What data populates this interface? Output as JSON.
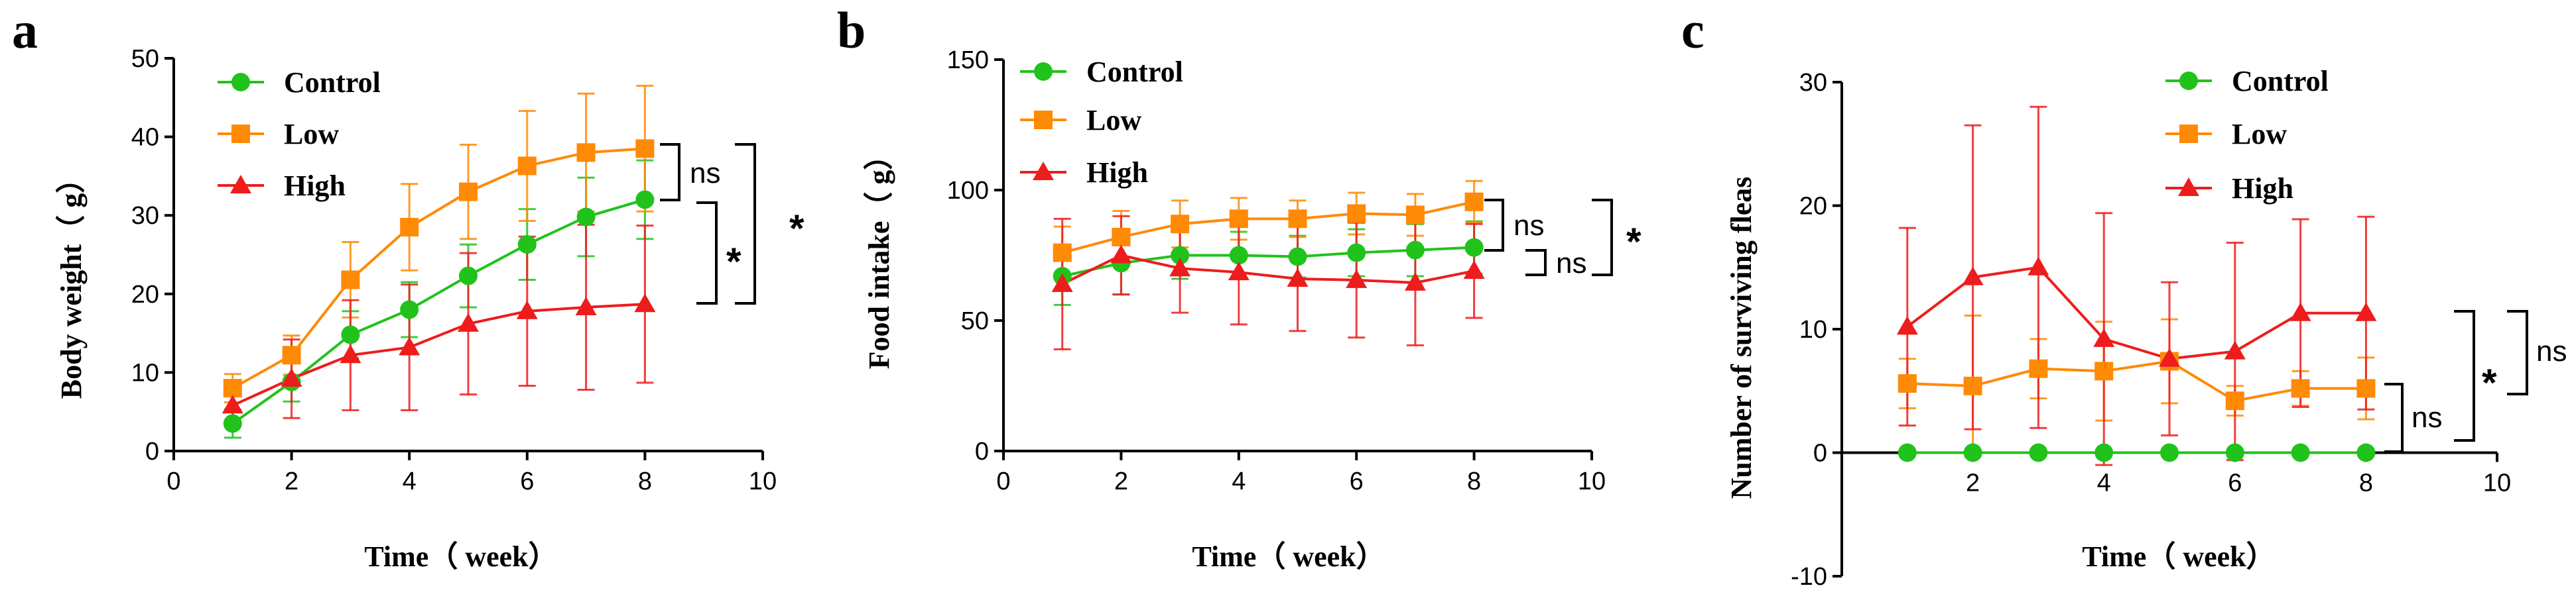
{
  "chart_data": [
    {
      "panel": "a",
      "type": "line",
      "xlabel": "Time（ week）",
      "ylabel": "Body weight（ g）",
      "xlim": [
        0,
        10
      ],
      "ylim": [
        0,
        50
      ],
      "xticks": [
        0,
        2,
        4,
        6,
        8,
        10
      ],
      "yticks": [
        0,
        10,
        20,
        30,
        40,
        50
      ],
      "grid": false,
      "legend_position": "top-left",
      "x": [
        1,
        2,
        3,
        4,
        5,
        6,
        7,
        8
      ],
      "series": [
        {
          "name": "Control",
          "color": "#21c21b",
          "marker": "circle",
          "values": [
            3.5,
            8.8,
            14.8,
            18.0,
            22.3,
            26.3,
            29.8,
            32.0
          ],
          "errors": [
            1.8,
            2.5,
            3.0,
            3.5,
            4.0,
            4.5,
            5.0,
            5.0
          ]
        },
        {
          "name": "Low",
          "color": "#ff8a05",
          "marker": "square",
          "values": [
            8.0,
            12.2,
            21.8,
            28.5,
            33.0,
            36.3,
            38.0,
            38.5
          ],
          "errors": [
            1.8,
            2.5,
            4.8,
            5.5,
            6.0,
            7.0,
            7.5,
            8.0
          ]
        },
        {
          "name": "High",
          "color": "#ee1c1c",
          "marker": "triangle",
          "values": [
            5.8,
            9.2,
            12.2,
            13.2,
            16.2,
            17.8,
            18.3,
            18.7
          ],
          "errors": [
            2.0,
            5.0,
            7.0,
            8.0,
            9.0,
            9.5,
            10.5,
            10.0
          ]
        }
      ],
      "significance": [
        {
          "label": "ns",
          "compare": [
            "Low",
            "Control"
          ]
        },
        {
          "label": "*",
          "compare": [
            "Control",
            "High"
          ]
        },
        {
          "label": "*",
          "compare": [
            "Low",
            "High"
          ]
        }
      ]
    },
    {
      "panel": "b",
      "type": "line",
      "xlabel": "Time（ week）",
      "ylabel": "Food intake（ g）",
      "xlim": [
        0,
        10
      ],
      "ylim": [
        0,
        150
      ],
      "xticks": [
        0,
        2,
        4,
        6,
        8,
        10
      ],
      "yticks": [
        0,
        50,
        100,
        150
      ],
      "grid": false,
      "legend_position": "top-left",
      "x": [
        1,
        2,
        3,
        4,
        5,
        6,
        7,
        8
      ],
      "series": [
        {
          "name": "Control",
          "color": "#21c21b",
          "marker": "circle",
          "values": [
            67,
            72,
            75,
            75,
            74.5,
            76,
            77,
            78
          ],
          "errors": [
            11,
            12,
            9,
            9,
            8,
            9,
            10,
            10
          ]
        },
        {
          "name": "Low",
          "color": "#ff8a05",
          "marker": "square",
          "values": [
            76,
            82,
            87,
            89,
            89,
            91,
            90.5,
            95.5
          ],
          "errors": [
            10,
            10,
            9,
            8,
            7,
            8,
            8,
            8
          ]
        },
        {
          "name": "High",
          "color": "#ee1c1c",
          "marker": "triangle",
          "values": [
            64,
            75,
            70,
            68.5,
            66,
            65.5,
            64.5,
            69
          ],
          "errors": [
            25,
            15,
            17,
            20,
            20,
            22,
            24,
            18
          ]
        }
      ],
      "significance": [
        {
          "label": "ns",
          "compare": [
            "Low",
            "Control"
          ]
        },
        {
          "label": "ns",
          "compare": [
            "Control",
            "High"
          ]
        },
        {
          "label": "*",
          "compare": [
            "Low",
            "High"
          ]
        }
      ]
    },
    {
      "panel": "c",
      "type": "line",
      "xlabel": "Time（ week）",
      "ylabel": "Number of surviving fleas",
      "xlim": [
        0,
        10
      ],
      "ylim": [
        -10,
        30
      ],
      "xticks": [
        2,
        4,
        6,
        8,
        10
      ],
      "yticks": [
        -10,
        0,
        10,
        20,
        30
      ],
      "grid": false,
      "legend_position": "top-center",
      "x": [
        1,
        2,
        3,
        4,
        5,
        6,
        7,
        8
      ],
      "series": [
        {
          "name": "Control",
          "color": "#21c21b",
          "marker": "circle",
          "values": [
            0,
            0,
            0,
            0,
            0,
            0,
            0,
            0
          ],
          "errors": [
            0,
            0,
            0,
            0,
            0,
            0,
            0,
            0
          ]
        },
        {
          "name": "Low",
          "color": "#ff8a05",
          "marker": "square",
          "values": [
            5.6,
            5.4,
            6.8,
            6.6,
            7.4,
            4.2,
            5.2,
            5.2
          ],
          "errors": [
            2.0,
            5.7,
            2.4,
            4.0,
            3.4,
            1.2,
            1.4,
            2.5
          ]
        },
        {
          "name": "High",
          "color": "#ee1c1c",
          "marker": "triangle",
          "values": [
            10.2,
            14.2,
            15.0,
            9.2,
            7.6,
            8.2,
            11.3,
            11.3
          ],
          "errors": [
            8.0,
            12.3,
            13.0,
            10.2,
            6.2,
            8.8,
            7.6,
            7.8
          ]
        }
      ],
      "significance": [
        {
          "label": "ns",
          "compare": [
            "Low",
            "Control"
          ]
        },
        {
          "label": "*",
          "compare": [
            "High",
            "Control"
          ]
        },
        {
          "label": "ns",
          "compare": [
            "High",
            "Low"
          ]
        }
      ]
    }
  ]
}
